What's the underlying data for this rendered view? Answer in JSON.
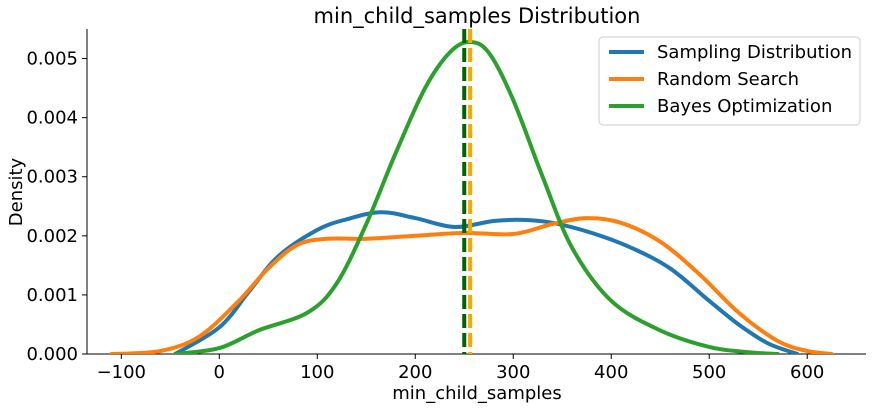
{
  "chart_data": {
    "type": "line",
    "title": "min_child_samples Distribution",
    "xlabel": "min_child_samples",
    "ylabel": "Density",
    "xlim": [
      -135,
      660
    ],
    "ylim": [
      0,
      0.0055
    ],
    "xticks": [
      -100,
      0,
      100,
      200,
      300,
      400,
      500,
      600
    ],
    "xtick_labels": [
      "−100",
      "0",
      "100",
      "200",
      "300",
      "400",
      "500",
      "600"
    ],
    "yticks": [
      0,
      0.001,
      0.002,
      0.003,
      0.004,
      0.005
    ],
    "ytick_labels": [
      "0.000",
      "0.001",
      "0.002",
      "0.003",
      "0.004",
      "0.005"
    ],
    "grid": false,
    "legend_position": "top-right",
    "series": [
      {
        "name": "Sampling Distribution",
        "color": "#1f77b4",
        "x": [
          -45,
          0,
          30,
          60,
          100,
          130,
          165,
          200,
          240,
          280,
          310,
          340,
          380,
          420,
          460,
          500,
          530,
          560,
          590
        ],
        "y": [
          0.0,
          0.00045,
          0.00105,
          0.00165,
          0.0021,
          0.00228,
          0.0024,
          0.0023,
          0.00215,
          0.00225,
          0.00227,
          0.00222,
          0.00205,
          0.0018,
          0.00145,
          0.0009,
          0.0005,
          0.00018,
          0.0
        ]
      },
      {
        "name": "Random Search",
        "color": "#ff7f0e",
        "x": [
          -110,
          -60,
          -20,
          20,
          50,
          80,
          110,
          150,
          200,
          250,
          300,
          340,
          375,
          410,
          450,
          490,
          530,
          570,
          600,
          625
        ],
        "y": [
          0.0,
          5e-05,
          0.0003,
          0.0009,
          0.00145,
          0.00185,
          0.00195,
          0.00195,
          0.002,
          0.00205,
          0.00203,
          0.0022,
          0.0023,
          0.00222,
          0.0019,
          0.00135,
          0.0007,
          0.00022,
          5e-05,
          0.0
        ]
      },
      {
        "name": "Bayes Optimization",
        "color": "#2ca02c",
        "x": [
          -45,
          0,
          40,
          90,
          120,
          150,
          180,
          210,
          235,
          255,
          275,
          300,
          330,
          360,
          400,
          450,
          500,
          540,
          570
        ],
        "y": [
          0.0,
          0.0001,
          0.0004,
          0.0007,
          0.0012,
          0.0022,
          0.0034,
          0.0045,
          0.0051,
          0.00528,
          0.0051,
          0.0043,
          0.003,
          0.0018,
          0.0009,
          0.0004,
          0.00012,
          3e-05,
          0.0
        ]
      }
    ],
    "vlines": [
      {
        "x": 250,
        "color": "#006400",
        "style": "dashed"
      },
      {
        "x": 256,
        "color": "#ffa500",
        "style": "dashed"
      }
    ]
  }
}
